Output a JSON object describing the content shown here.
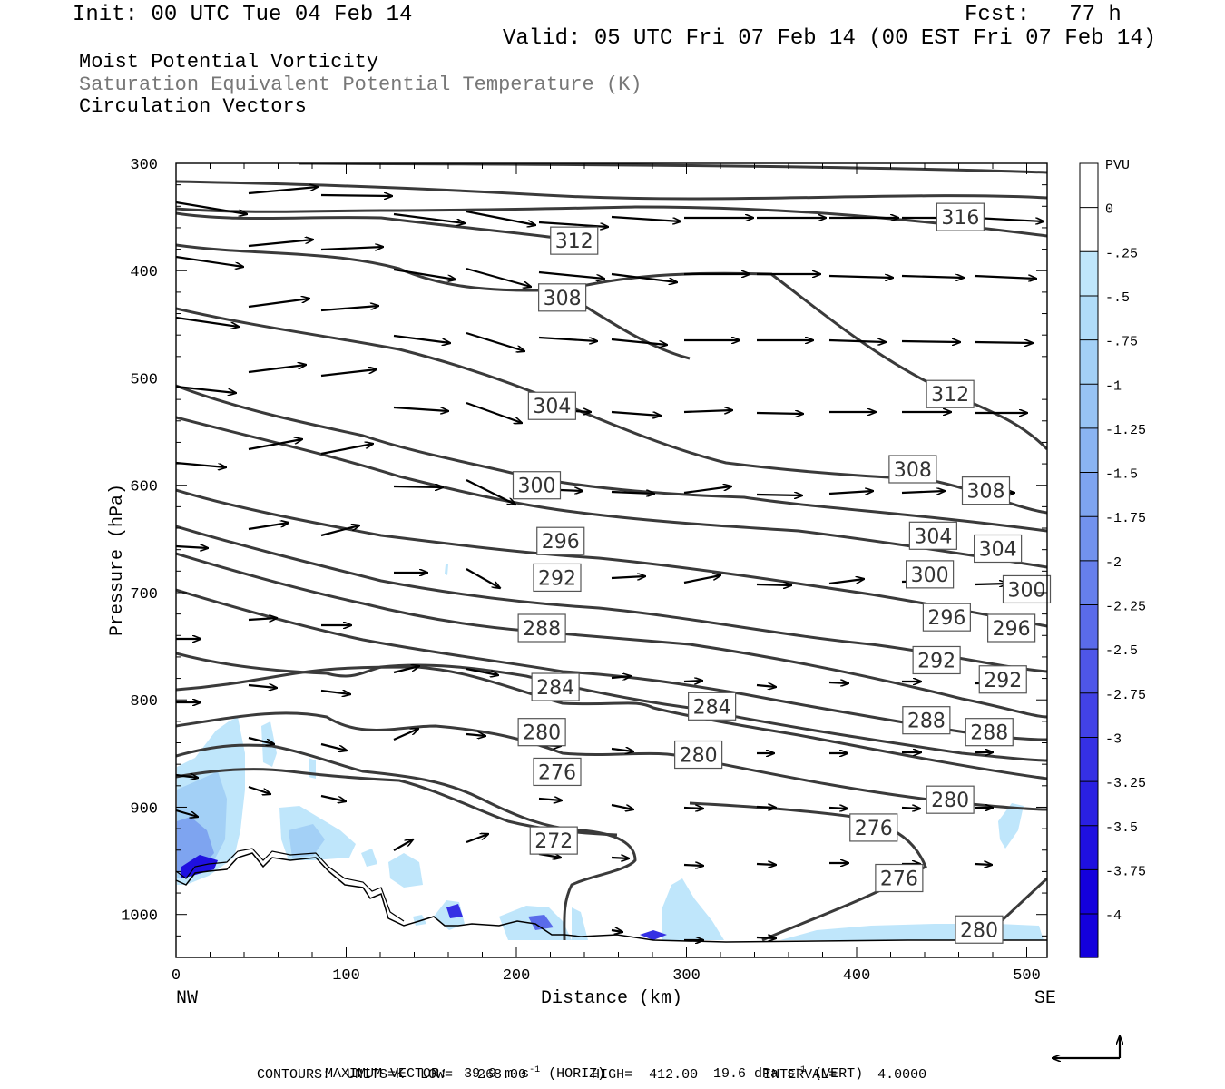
{
  "header": {
    "init": "Init: 00 UTC Tue 04 Feb 14",
    "fcst": "Fcst:   77 h",
    "valid": "Valid: 05 UTC Fri 07 Feb 14 (00 EST Fri 07 Feb 14)"
  },
  "fields": {
    "shaded": "Moist Potential Vorticity",
    "contour": "Saturation Equivalent Potential Temperature (K)",
    "vectors": "Circulation Vectors"
  },
  "footer": {
    "max_vector_label": "MAXIMUM VECTOR:",
    "max_vector_horiz": "39.9 m s",
    "horiz_tag": "(HORIZ)",
    "max_vector_vert": "19.6 dPa s",
    "vert_tag": "(VERT)",
    "exp": "-1",
    "contours": "CONTOURS:  UNITS=K  LOW=   268.00        HIGH=  412.00        INTERVAL=     4.0000"
  },
  "colors": {
    "contour": "#3a3a3a",
    "vector": "#000000",
    "pv_scale": [
      "#ffffff",
      "#ffffff",
      "#bfe6fb",
      "#b0dcf8",
      "#a3d0f6",
      "#97c3f4",
      "#8ab4f2",
      "#7ea4f0",
      "#7292ee",
      "#667fec",
      "#5a6bea",
      "#4e56e8",
      "#4242e6",
      "#3530e4",
      "#2a20e2",
      "#1f10e0",
      "#1400dd"
    ]
  },
  "chart_data": {
    "type": "cross-section",
    "xlabel": "Distance (km)",
    "ylabel": "Pressure (hPa)",
    "xlim": [
      0,
      512
    ],
    "ylim": [
      1040,
      300
    ],
    "x_ticks": [
      0,
      100,
      200,
      300,
      400,
      500
    ],
    "y_ticks": [
      300,
      400,
      500,
      600,
      700,
      800,
      900,
      1000
    ],
    "x_end_labels": {
      "left": "NW",
      "right": "SE"
    },
    "colorbar": {
      "title": "PVU",
      "ticks": [
        "0",
        "-.25",
        "-.5",
        "-.75",
        "-1",
        "-1.25",
        "-1.5",
        "-1.75",
        "-2",
        "-2.25",
        "-2.5",
        "-2.75",
        "-3",
        "-3.25",
        "-3.5",
        "-3.75",
        "-4"
      ]
    },
    "contour_labels": [
      {
        "text": "316",
        "x": 461,
        "p": 350
      },
      {
        "text": "312",
        "x": 234,
        "p": 372
      },
      {
        "text": "308",
        "x": 227,
        "p": 425
      },
      {
        "text": "312",
        "x": 455,
        "p": 515
      },
      {
        "text": "304",
        "x": 221,
        "p": 526
      },
      {
        "text": "308",
        "x": 433,
        "p": 585
      },
      {
        "text": "300",
        "x": 212,
        "p": 600
      },
      {
        "text": "308",
        "x": 476,
        "p": 605
      },
      {
        "text": "304",
        "x": 445,
        "p": 647
      },
      {
        "text": "304",
        "x": 483,
        "p": 659
      },
      {
        "text": "296",
        "x": 226,
        "p": 652
      },
      {
        "text": "300",
        "x": 443,
        "p": 683
      },
      {
        "text": "292",
        "x": 224,
        "p": 686
      },
      {
        "text": "300",
        "x": 500,
        "p": 697
      },
      {
        "text": "296",
        "x": 453,
        "p": 723
      },
      {
        "text": "296",
        "x": 491,
        "p": 733
      },
      {
        "text": "288",
        "x": 215,
        "p": 733
      },
      {
        "text": "292",
        "x": 447,
        "p": 763
      },
      {
        "text": "292",
        "x": 486,
        "p": 781
      },
      {
        "text": "284",
        "x": 223,
        "p": 788
      },
      {
        "text": "284",
        "x": 315,
        "p": 806
      },
      {
        "text": "288",
        "x": 441,
        "p": 819
      },
      {
        "text": "288",
        "x": 478,
        "p": 830
      },
      {
        "text": "280",
        "x": 215,
        "p": 830
      },
      {
        "text": "280",
        "x": 307,
        "p": 851
      },
      {
        "text": "276",
        "x": 224,
        "p": 867
      },
      {
        "text": "280",
        "x": 455,
        "p": 893
      },
      {
        "text": "276",
        "x": 410,
        "p": 919
      },
      {
        "text": "272",
        "x": 222,
        "p": 931
      },
      {
        "text": "276",
        "x": 425,
        "p": 966
      },
      {
        "text": "280",
        "x": 472,
        "p": 1014
      }
    ],
    "max_vector": {
      "horizontal_m_s": 39.9,
      "vertical_dPa_s": 19.6
    },
    "contour_units": "K",
    "contour_low": 268.0,
    "contour_high": 412.0,
    "contour_interval": 4.0
  }
}
